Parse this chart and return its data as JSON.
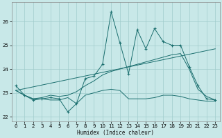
{
  "xlabel": "Humidex (Indice chaleur)",
  "bg_color": "#c8e8e8",
  "line_color": "#1a6e6e",
  "grid_color": "#a0cccc",
  "xlim": [
    -0.5,
    23.5
  ],
  "ylim": [
    21.8,
    26.8
  ],
  "yticks": [
    22,
    23,
    24,
    25,
    26
  ],
  "xticks": [
    0,
    1,
    2,
    3,
    4,
    5,
    6,
    7,
    8,
    9,
    10,
    11,
    12,
    13,
    14,
    15,
    16,
    17,
    18,
    19,
    20,
    21,
    22,
    23
  ],
  "line1_x": [
    0,
    1,
    2,
    3,
    4,
    5,
    6,
    7,
    8,
    9,
    10,
    11,
    12,
    13,
    14,
    15,
    16,
    17,
    18,
    19,
    20,
    21,
    22,
    23
  ],
  "line1_y": [
    23.3,
    22.9,
    22.7,
    22.75,
    22.8,
    22.75,
    22.2,
    22.55,
    23.6,
    23.7,
    24.2,
    26.4,
    25.1,
    23.8,
    25.65,
    24.85,
    25.7,
    25.15,
    25.0,
    25.0,
    24.1,
    23.3,
    22.75,
    22.7
  ],
  "line2_x": [
    0,
    1,
    2,
    3,
    4,
    5,
    6,
    7,
    8,
    9,
    10,
    11,
    12,
    13,
    14,
    15,
    16,
    17,
    18,
    19,
    20,
    21,
    22,
    23
  ],
  "line2_y": [
    23.1,
    22.9,
    22.75,
    22.75,
    22.7,
    22.7,
    22.8,
    22.55,
    22.9,
    23.0,
    23.1,
    23.15,
    23.1,
    22.75,
    22.75,
    22.75,
    22.8,
    22.9,
    22.9,
    22.85,
    22.75,
    22.7,
    22.65,
    22.65
  ],
  "line3_x": [
    0,
    1,
    2,
    3,
    4,
    5,
    6,
    7,
    8,
    9,
    10,
    11,
    12,
    13,
    14,
    15,
    16,
    17,
    18,
    19,
    20,
    21,
    22,
    23
  ],
  "line3_y": [
    23.1,
    22.9,
    22.75,
    22.8,
    22.9,
    22.85,
    22.9,
    23.05,
    23.3,
    23.5,
    23.75,
    23.9,
    24.0,
    24.1,
    24.2,
    24.3,
    24.4,
    24.5,
    24.6,
    24.65,
    24.0,
    23.15,
    22.85,
    22.7
  ],
  "line4_x": [
    0,
    23
  ],
  "line4_y": [
    23.1,
    24.85
  ]
}
